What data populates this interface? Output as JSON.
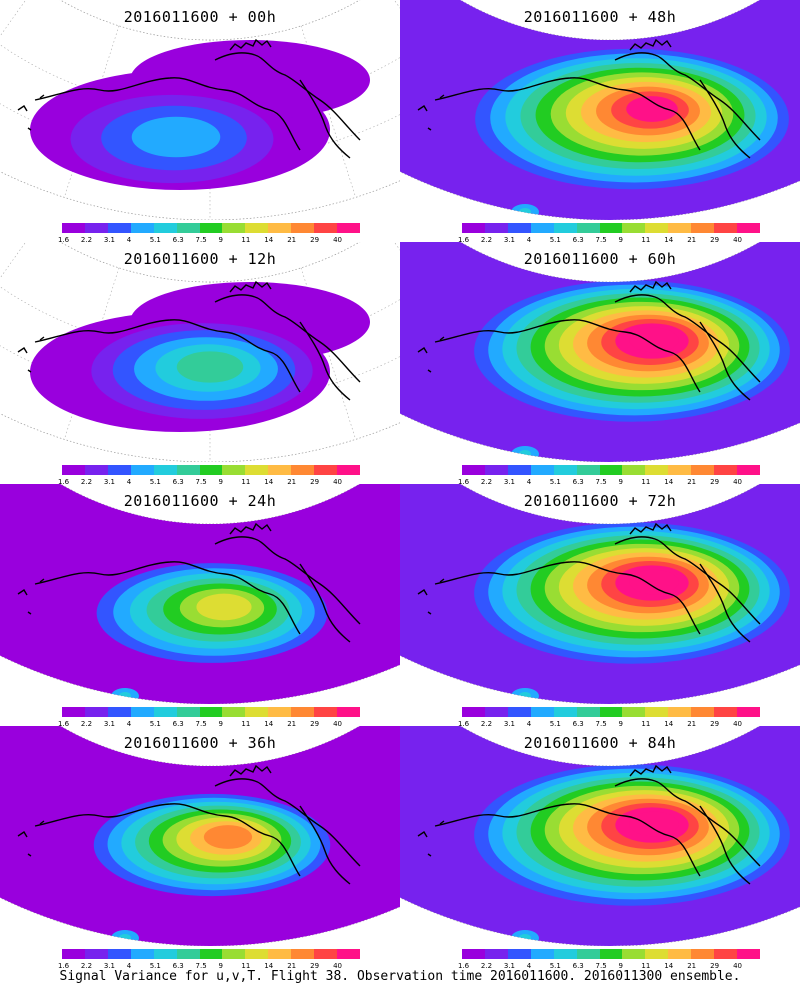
{
  "panels": [
    {
      "title": "2016011600 + 00h",
      "level": 0
    },
    {
      "title": "2016011600 + 48h",
      "level": 4
    },
    {
      "title": "2016011600 + 12h",
      "level": 1
    },
    {
      "title": "2016011600 + 60h",
      "level": 5
    },
    {
      "title": "2016011600 + 24h",
      "level": 2
    },
    {
      "title": "2016011600 + 72h",
      "level": 5
    },
    {
      "title": "2016011600 + 36h",
      "level": 3
    },
    {
      "title": "2016011600 + 84h",
      "level": 5
    }
  ],
  "colorbar": {
    "labels": [
      "1.6",
      "2.2",
      "3.1",
      "4",
      "5.1",
      "6.3",
      "7.5",
      "9",
      "11",
      "14",
      "21",
      "29",
      "40"
    ],
    "colors": [
      "#9900dd",
      "#7722ee",
      "#3355ff",
      "#22aaff",
      "#22ccdd",
      "#33cc99",
      "#22cc22",
      "#99dd33",
      "#dddd33",
      "#ffbb44",
      "#ff8833",
      "#ff4444",
      "#ff1188"
    ]
  },
  "footer": "Signal Variance for u,v,T. Flight 38. Observation time 2016011600. 2016011300 ensemble."
}
